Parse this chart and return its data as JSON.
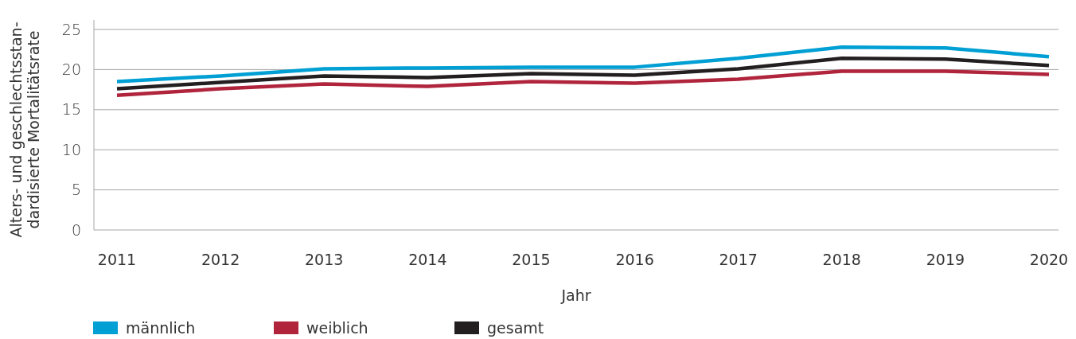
{
  "chart_data": {
    "type": "line",
    "xlabel": "Jahr",
    "ylabel": "Alters- und geschlechtsstan-\ndardisierte Mortalitätsrate",
    "categories": [
      "2011",
      "2012",
      "2013",
      "2014",
      "2015",
      "2016",
      "2017",
      "2018",
      "2019",
      "2020"
    ],
    "series": [
      {
        "name": "männlich",
        "color": "#009fd4",
        "values": [
          18.5,
          19.2,
          20.1,
          20.2,
          20.3,
          20.3,
          21.4,
          22.8,
          22.7,
          21.6
        ]
      },
      {
        "name": "weiblich",
        "color": "#b0243c",
        "values": [
          16.8,
          17.6,
          18.2,
          17.9,
          18.5,
          18.3,
          18.8,
          19.8,
          19.8,
          19.4
        ]
      },
      {
        "name": "gesamt",
        "color": "#231f20",
        "values": [
          17.6,
          18.4,
          19.2,
          19.0,
          19.5,
          19.3,
          20.1,
          21.4,
          21.3,
          20.5
        ]
      }
    ],
    "ylim": [
      0,
      25
    ],
    "yticks": [
      0,
      5,
      10,
      15,
      20,
      25
    ],
    "grid": "y",
    "legend": "bottom left",
    "marker": "none",
    "line_style": "solid"
  }
}
